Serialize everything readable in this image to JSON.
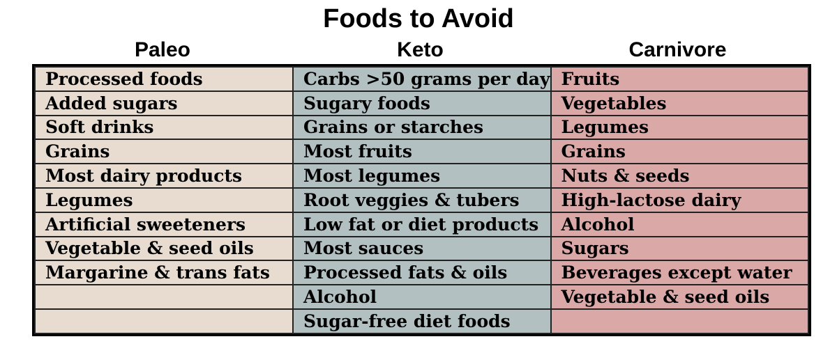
{
  "title": "Foods to Avoid",
  "columns": [
    "Paleo",
    "Keto",
    "Carnivore"
  ],
  "colors": {
    "paleo": "#e8dcd1",
    "keto": "#b3c0c2",
    "carnivore": "#dba8a8"
  },
  "rows": [
    [
      "Processed foods",
      "Carbs >50 grams per day",
      "Fruits"
    ],
    [
      "Added sugars",
      "Sugary foods",
      "Vegetables"
    ],
    [
      "Soft drinks",
      "Grains or starches",
      "Legumes"
    ],
    [
      "Grains",
      "Most fruits",
      "Grains"
    ],
    [
      "Most dairy products",
      "Most legumes",
      "Nuts & seeds"
    ],
    [
      "Legumes",
      "Root veggies & tubers",
      "High-lactose dairy"
    ],
    [
      "Artificial sweeteners",
      "Low fat or diet products",
      "Alcohol"
    ],
    [
      "Vegetable & seed oils",
      "Most sauces",
      "Sugars"
    ],
    [
      "Margarine & trans fats",
      "Processed fats & oils",
      "Beverages except water"
    ],
    [
      "",
      "Alcohol",
      "Vegetable & seed oils"
    ],
    [
      "",
      "Sugar-free diet foods",
      ""
    ]
  ]
}
